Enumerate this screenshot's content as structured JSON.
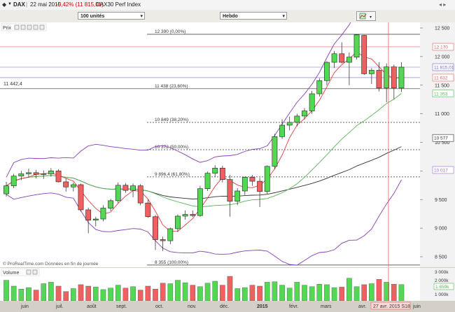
{
  "window": {
    "symbol": "DAX",
    "date": "22 mai 2015",
    "change": "-0,42% (11 815,01)",
    "name": "DAX30 Perf Index"
  },
  "toolbar": {
    "units": "100 unités",
    "period": "Hebdo"
  },
  "panel": {
    "label": "Prix",
    "watermark": "© ProRealTime.com  Données en fin de journée"
  },
  "volume": {
    "label": "Volume",
    "scale_top": "3 000k",
    "scale_mid": "2 000k",
    "scale_low": "1 000k",
    "current_value": "1 659k"
  },
  "chart_data": {
    "type": "candlestick",
    "period": "weekly",
    "y_axis_ticks": [
      "12 500",
      "12 000",
      "11 500",
      "11 000",
      "10 500",
      "10 000",
      "9 500",
      "9 000",
      "8 500"
    ],
    "y_axis_markers": [
      {
        "label": "12 170",
        "value": 12170,
        "color": "#e86060"
      },
      {
        "label": "11 815,01",
        "value": 11815.01,
        "color": "#6a6ad0"
      },
      {
        "label": "11 632",
        "value": 11632,
        "color": "#e86060"
      },
      {
        "label": "11 353",
        "value": 11353,
        "color": "#5ab45a"
      },
      {
        "label": "10 577",
        "value": 10577,
        "color": "#333333"
      },
      {
        "label": "10 017",
        "value": 10017,
        "color": "#a06ad0"
      }
    ],
    "left_label": "11 442,4",
    "fib_levels": [
      {
        "label": "12 390 (0,00%)",
        "value": 12390,
        "style": "solid"
      },
      {
        "label": "11 438 (23,60%)",
        "value": 11438,
        "style": "solid"
      },
      {
        "label": "10 849 (38,20%)",
        "value": 10849,
        "style": "dashed"
      },
      {
        "label": "10 372 (50,00%)",
        "value": 10372,
        "style": "dashed"
      },
      {
        "label": "9 896,4 (61,80%)",
        "value": 9896.4,
        "style": "dashed"
      },
      {
        "label": "8 355 (100,00%)",
        "value": 8355,
        "style": "solid"
      }
    ],
    "x_labels": [
      "juin",
      "juil.",
      "août",
      "sept.",
      "oct.",
      "nov.",
      "déc.",
      "2015",
      "févr.",
      "mars",
      "avr.",
      "juin"
    ],
    "cursor_label": "27 avr. 2015 S18",
    "candles": [
      {
        "o": 9600,
        "h": 9810,
        "l": 9550,
        "c": 9740
      },
      {
        "o": 9740,
        "h": 9950,
        "l": 9700,
        "c": 9910
      },
      {
        "o": 9910,
        "h": 10000,
        "l": 9840,
        "c": 9950
      },
      {
        "o": 9950,
        "h": 10040,
        "l": 9880,
        "c": 9970
      },
      {
        "o": 9970,
        "h": 10020,
        "l": 9870,
        "c": 9940
      },
      {
        "o": 9940,
        "h": 10010,
        "l": 9860,
        "c": 9950
      },
      {
        "o": 9950,
        "h": 10050,
        "l": 9900,
        "c": 10000
      },
      {
        "o": 10000,
        "h": 10030,
        "l": 9800,
        "c": 9810
      },
      {
        "o": 9810,
        "h": 9870,
        "l": 9640,
        "c": 9720
      },
      {
        "o": 9720,
        "h": 9800,
        "l": 9640,
        "c": 9760
      },
      {
        "o": 9760,
        "h": 9780,
        "l": 9290,
        "c": 9320
      },
      {
        "o": 9320,
        "h": 9360,
        "l": 8910,
        "c": 9140
      },
      {
        "o": 9140,
        "h": 9200,
        "l": 9030,
        "c": 9160
      },
      {
        "o": 9160,
        "h": 9400,
        "l": 9120,
        "c": 9350
      },
      {
        "o": 9350,
        "h": 9510,
        "l": 9300,
        "c": 9480
      },
      {
        "o": 9480,
        "h": 9800,
        "l": 9440,
        "c": 9750
      },
      {
        "o": 9750,
        "h": 9790,
        "l": 9620,
        "c": 9660
      },
      {
        "o": 9660,
        "h": 9780,
        "l": 9540,
        "c": 9740
      },
      {
        "o": 9740,
        "h": 9770,
        "l": 9400,
        "c": 9440
      },
      {
        "o": 9440,
        "h": 9500,
        "l": 9180,
        "c": 9200
      },
      {
        "o": 9200,
        "h": 9230,
        "l": 8620,
        "c": 8800
      },
      {
        "o": 8800,
        "h": 8850,
        "l": 8600,
        "c": 8780
      },
      {
        "o": 8780,
        "h": 9010,
        "l": 8720,
        "c": 8990
      },
      {
        "o": 8990,
        "h": 9240,
        "l": 8930,
        "c": 9210
      },
      {
        "o": 9210,
        "h": 9310,
        "l": 9150,
        "c": 9240
      },
      {
        "o": 9240,
        "h": 9310,
        "l": 9190,
        "c": 9220
      },
      {
        "o": 9220,
        "h": 9740,
        "l": 9200,
        "c": 9690
      },
      {
        "o": 9690,
        "h": 9990,
        "l": 9650,
        "c": 9960
      },
      {
        "o": 9960,
        "h": 10100,
        "l": 9900,
        "c": 10050
      },
      {
        "o": 10050,
        "h": 10090,
        "l": 9800,
        "c": 9850
      },
      {
        "o": 9850,
        "h": 9930,
        "l": 9200,
        "c": 9470
      },
      {
        "o": 9470,
        "h": 9700,
        "l": 9400,
        "c": 9650
      },
      {
        "o": 9650,
        "h": 9900,
        "l": 9580,
        "c": 9890
      },
      {
        "o": 9890,
        "h": 9930,
        "l": 9740,
        "c": 9820
      },
      {
        "o": 9820,
        "h": 9880,
        "l": 9370,
        "c": 9640
      },
      {
        "o": 9640,
        "h": 10100,
        "l": 9600,
        "c": 10080
      },
      {
        "o": 10080,
        "h": 10650,
        "l": 10030,
        "c": 10600
      },
      {
        "o": 10600,
        "h": 10900,
        "l": 10560,
        "c": 10800
      },
      {
        "o": 10800,
        "h": 10950,
        "l": 10710,
        "c": 10850
      },
      {
        "o": 10850,
        "h": 11000,
        "l": 10780,
        "c": 10960
      },
      {
        "o": 10960,
        "h": 11100,
        "l": 10900,
        "c": 11050
      },
      {
        "o": 11050,
        "h": 11400,
        "l": 11000,
        "c": 11350
      },
      {
        "o": 11350,
        "h": 11620,
        "l": 11300,
        "c": 11580
      },
      {
        "o": 11580,
        "h": 11920,
        "l": 11500,
        "c": 11900
      },
      {
        "o": 11900,
        "h": 12100,
        "l": 11800,
        "c": 12050
      },
      {
        "o": 12050,
        "h": 12250,
        "l": 11880,
        "c": 11900
      },
      {
        "o": 11900,
        "h": 12070,
        "l": 11500,
        "c": 11990
      },
      {
        "o": 11990,
        "h": 12390,
        "l": 11950,
        "c": 12380
      },
      {
        "o": 12370,
        "h": 12380,
        "l": 11680,
        "c": 11700
      },
      {
        "o": 11700,
        "h": 11800,
        "l": 11520,
        "c": 11760
      },
      {
        "o": 11760,
        "h": 11900,
        "l": 11390,
        "c": 11450
      },
      {
        "o": 11450,
        "h": 11880,
        "l": 11200,
        "c": 11820
      },
      {
        "o": 11820,
        "h": 11860,
        "l": 11260,
        "c": 11450
      },
      {
        "o": 11450,
        "h": 11900,
        "l": 11380,
        "c": 11815
      }
    ],
    "volumes": [
      2100,
      1500,
      1200,
      1350,
      1100,
      1750,
      1900,
      1500,
      950,
      1250,
      1650,
      1500,
      1400,
      1150,
      1300,
      1600,
      1300,
      1450,
      1100,
      1500,
      1200,
      1800,
      1750,
      2100,
      1850,
      1600,
      1450,
      1800,
      2000,
      1600,
      2500,
      1250,
      1350,
      1600,
      1500,
      1900,
      1950,
      1600,
      1300,
      1900,
      1600,
      1450,
      1700,
      1650,
      1350,
      1400,
      2300,
      1450,
      1650,
      1750,
      2200,
      1900,
      1700,
      1659
    ]
  }
}
